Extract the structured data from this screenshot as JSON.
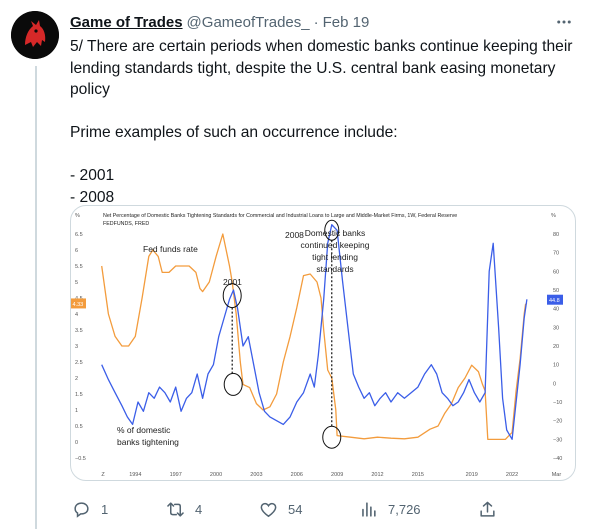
{
  "tweet": {
    "author_name": "Game of Trades",
    "handle": "@GameofTrades_",
    "separator": "·",
    "date": "Feb 19",
    "text_lines": [
      "5/ There are certain periods when domestic banks continue keeping their",
      "lending standards tight, despite the U.S. central bank easing monetary",
      "policy",
      "",
      "Prime examples of such an occurrence include:",
      "",
      "- 2001",
      "- 2008"
    ]
  },
  "actions": {
    "replies": "1",
    "retweets": "4",
    "likes": "54",
    "views": "7,726"
  },
  "icons": [
    "more-icon",
    "reply-icon",
    "retweet-icon",
    "like-icon",
    "views-icon",
    "share-icon",
    "avatar-logo-icon"
  ],
  "colors": {
    "accent_orange": "#f39c3d",
    "accent_blue": "#3b5ee8",
    "text": "#0f1419",
    "muted": "#536471"
  },
  "chart_data": {
    "type": "line",
    "title_line1": "Net Percentage of Domestic Banks Tightening Standards for Commercial and Industrial Loans to Large and Middle-Market Firms, 1W, Federal Reserve",
    "title_line2": "FEDFUNDS, FRED",
    "left_unit": "%",
    "right_unit": "%",
    "left_ticks": [
      "6.5",
      "6",
      "5.5",
      "5",
      "4.5",
      "4",
      "3.5",
      "3",
      "2.5",
      "2",
      "1.5",
      "1",
      "0.5",
      "0",
      "−0.5"
    ],
    "right_ticks": [
      "80",
      "70",
      "60",
      "50",
      "40",
      "30",
      "20",
      "10",
      "0",
      "−10",
      "−20",
      "−30",
      "−40"
    ],
    "x_ticks": [
      "Z",
      "1994",
      "1997",
      "2000",
      "2003",
      "2006",
      "2009",
      "2012",
      "2015",
      "2019",
      "2022",
      "Mar"
    ],
    "left_badge": "4.33",
    "right_badge": "44.8",
    "left_range": [
      -0.5,
      6.5
    ],
    "right_range": [
      -40,
      80
    ],
    "annotations": [
      "Fed funds rate",
      "2001",
      "2008",
      "Domestic banks",
      "continued keeping",
      "tight lending",
      "standards",
      "% of domestic",
      "banks tightening"
    ],
    "series": [
      {
        "name": "Fed funds rate",
        "axis": "left",
        "x": [
          1991.5,
          1992,
          1992.5,
          1993,
          1993.5,
          1994,
          1994.5,
          1995,
          1995.3,
          1995.7,
          1996,
          1996.5,
          1997,
          1997.5,
          1998,
          1998.5,
          1998.8,
          1999,
          1999.5,
          2000,
          2000.5,
          2001,
          2001.2,
          2001.5,
          2001.8,
          2002,
          2002.5,
          2003,
          2003.5,
          2004,
          2004.5,
          2005,
          2005.5,
          2006,
          2006.5,
          2007,
          2007.5,
          2007.8,
          2008,
          2008.3,
          2008.6,
          2008.9,
          2009,
          2010,
          2011,
          2012,
          2013,
          2014,
          2015,
          2015.9,
          2016.5,
          2017,
          2017.5,
          2018,
          2018.5,
          2019,
          2019.5,
          2019.8,
          2020,
          2020.2,
          2021,
          2021.5,
          2022,
          2022.3,
          2022.6,
          2022.9,
          2023,
          2023.1
        ],
        "y": [
          5.5,
          4.0,
          3.3,
          3.0,
          3.0,
          3.3,
          4.5,
          5.8,
          6.0,
          5.8,
          5.3,
          5.3,
          5.5,
          5.5,
          5.5,
          5.3,
          4.8,
          4.7,
          5.0,
          5.8,
          6.5,
          5.5,
          5.0,
          4.0,
          2.5,
          1.8,
          1.7,
          1.2,
          1.0,
          1.1,
          1.5,
          2.5,
          3.3,
          4.2,
          5.2,
          5.25,
          5.0,
          4.5,
          3.5,
          2.25,
          2.0,
          1.0,
          0.2,
          0.15,
          0.1,
          0.15,
          0.12,
          0.1,
          0.15,
          0.4,
          0.5,
          0.9,
          1.2,
          1.7,
          2.0,
          2.4,
          2.2,
          1.8,
          1.6,
          0.08,
          0.08,
          0.08,
          0.3,
          1.6,
          2.6,
          4.0,
          4.3,
          4.33
        ]
      },
      {
        "name": "% of domestic banks tightening",
        "axis": "right",
        "x": [
          1991.5,
          1992,
          1992.5,
          1993,
          1993.4,
          1993.8,
          1994.2,
          1994.6,
          1995,
          1995.4,
          1995.8,
          1996.2,
          1996.6,
          1997,
          1997.4,
          1997.8,
          1998.2,
          1998.6,
          1999,
          1999.4,
          1999.8,
          2000.2,
          2000.6,
          2001,
          2001.3,
          2001.6,
          2002,
          2002.4,
          2002.8,
          2003.2,
          2003.6,
          2004,
          2004.5,
          2005,
          2005.5,
          2006,
          2006.5,
          2007,
          2007.3,
          2007.6,
          2008,
          2008.3,
          2008.6,
          2009,
          2009.4,
          2009.8,
          2010.2,
          2010.6,
          2011,
          2011.4,
          2011.8,
          2012.2,
          2012.6,
          2013,
          2013.5,
          2014,
          2014.5,
          2015,
          2015.5,
          2016,
          2016.4,
          2016.8,
          2017.2,
          2017.6,
          2018,
          2018.4,
          2018.8,
          2019.2,
          2019.6,
          2020,
          2020.3,
          2020.6,
          2021,
          2021.3,
          2021.6,
          2022,
          2022.3,
          2022.6,
          2022.9,
          2023.1
        ],
        "y": [
          10,
          2,
          -5,
          -12,
          -18,
          -22,
          -10,
          -15,
          -5,
          -8,
          -2,
          -5,
          -10,
          -2,
          -15,
          -8,
          -5,
          5,
          -8,
          5,
          10,
          25,
          35,
          45,
          50,
          40,
          20,
          25,
          10,
          -5,
          -15,
          -18,
          -20,
          -22,
          -18,
          -10,
          -5,
          5,
          -2,
          15,
          45,
          75,
          85,
          82,
          55,
          30,
          5,
          -2,
          -8,
          -5,
          -12,
          -8,
          -5,
          -10,
          -5,
          -8,
          -5,
          -2,
          5,
          10,
          5,
          -5,
          -8,
          -12,
          -10,
          -5,
          2,
          -5,
          -10,
          -5,
          60,
          75,
          30,
          -8,
          -25,
          -30,
          -10,
          10,
          35,
          45
        ]
      }
    ]
  }
}
